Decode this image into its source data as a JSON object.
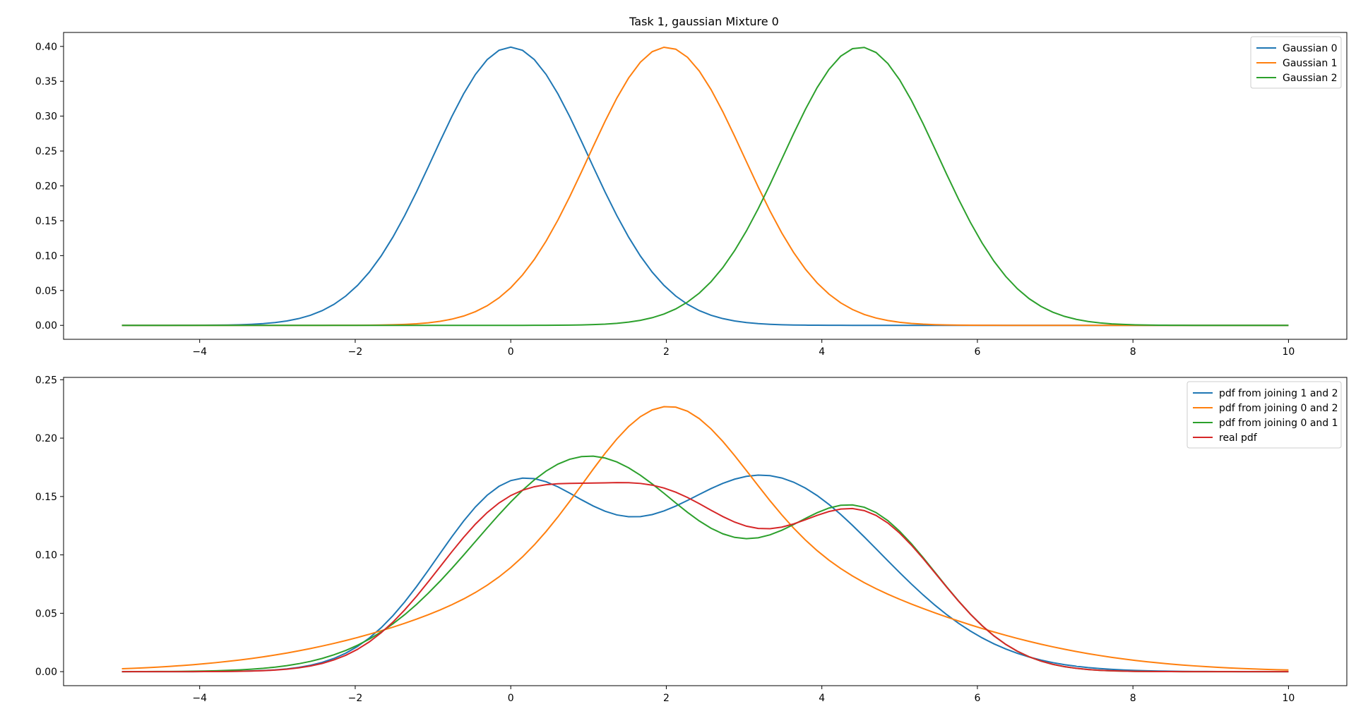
{
  "chart_data": [
    {
      "type": "line",
      "title": "Task 1, gaussian Mixture 0",
      "xlabel": "",
      "ylabel": "",
      "xlim": [
        -5.75,
        10.75
      ],
      "ylim": [
        -0.02,
        0.42
      ],
      "xticks": [
        -4,
        -2,
        0,
        2,
        4,
        6,
        8,
        10
      ],
      "xtick_labels": [
        "−4",
        "−2",
        "0",
        "2",
        "4",
        "6",
        "8",
        "10"
      ],
      "yticks": [
        0.0,
        0.05,
        0.1,
        0.15,
        0.2,
        0.25,
        0.3,
        0.35,
        0.4
      ],
      "ytick_labels": [
        "0.00",
        "0.05",
        "0.10",
        "0.15",
        "0.20",
        "0.25",
        "0.30",
        "0.35",
        "0.40"
      ],
      "x_range": [
        -5,
        10
      ],
      "grid": false,
      "legend_position": "top-right",
      "series": [
        {
          "name": "Gaussian 0",
          "color": "#1f77b4",
          "components": [
            {
              "mu": 0.0,
              "sigma": 1.0,
              "weight": 1.0
            }
          ]
        },
        {
          "name": "Gaussian 1",
          "color": "#ff7f0e",
          "components": [
            {
              "mu": 2.0,
              "sigma": 1.0,
              "weight": 1.0
            }
          ]
        },
        {
          "name": "Gaussian 2",
          "color": "#2ca02c",
          "components": [
            {
              "mu": 4.5,
              "sigma": 1.0,
              "weight": 1.0
            }
          ]
        }
      ]
    },
    {
      "type": "line",
      "title": "",
      "xlabel": "",
      "ylabel": "",
      "xlim": [
        -5.75,
        10.75
      ],
      "ylim": [
        -0.012,
        0.252
      ],
      "xticks": [
        -4,
        -2,
        0,
        2,
        4,
        6,
        8,
        10
      ],
      "xtick_labels": [
        "−4",
        "−2",
        "0",
        "2",
        "4",
        "6",
        "8",
        "10"
      ],
      "yticks": [
        0.0,
        0.05,
        0.1,
        0.15,
        0.2,
        0.25
      ],
      "ytick_labels": [
        "0.00",
        "0.05",
        "0.10",
        "0.15",
        "0.20",
        "0.25"
      ],
      "x_range": [
        -5,
        10
      ],
      "grid": false,
      "legend_position": "top-right",
      "series": [
        {
          "name": "pdf from joining 1 and 2",
          "color": "#1f77b4",
          "components": [
            {
              "mu": 0.0,
              "sigma": 1.0,
              "weight": 0.37
            },
            {
              "mu": 3.25,
              "sigma": 1.5,
              "weight": 0.63
            }
          ]
        },
        {
          "name": "pdf from joining 0 and 2",
          "color": "#ff7f0e",
          "components": [
            {
              "mu": 2.0,
              "sigma": 1.0,
              "weight": 0.31
            },
            {
              "mu": 2.25,
              "sigma": 2.65,
              "weight": 0.69
            }
          ]
        },
        {
          "name": "pdf from joining 0 and 1",
          "color": "#2ca02c",
          "components": [
            {
              "mu": 1.0,
              "sigma": 1.45,
              "weight": 0.67
            },
            {
              "mu": 4.5,
              "sigma": 1.0,
              "weight": 0.33
            }
          ]
        },
        {
          "name": "real pdf",
          "color": "#d62728",
          "components": [
            {
              "mu": 0.0,
              "sigma": 1.0,
              "weight": 0.333
            },
            {
              "mu": 2.0,
              "sigma": 1.0,
              "weight": 0.333
            },
            {
              "mu": 4.5,
              "sigma": 1.0,
              "weight": 0.333
            }
          ]
        }
      ]
    }
  ]
}
